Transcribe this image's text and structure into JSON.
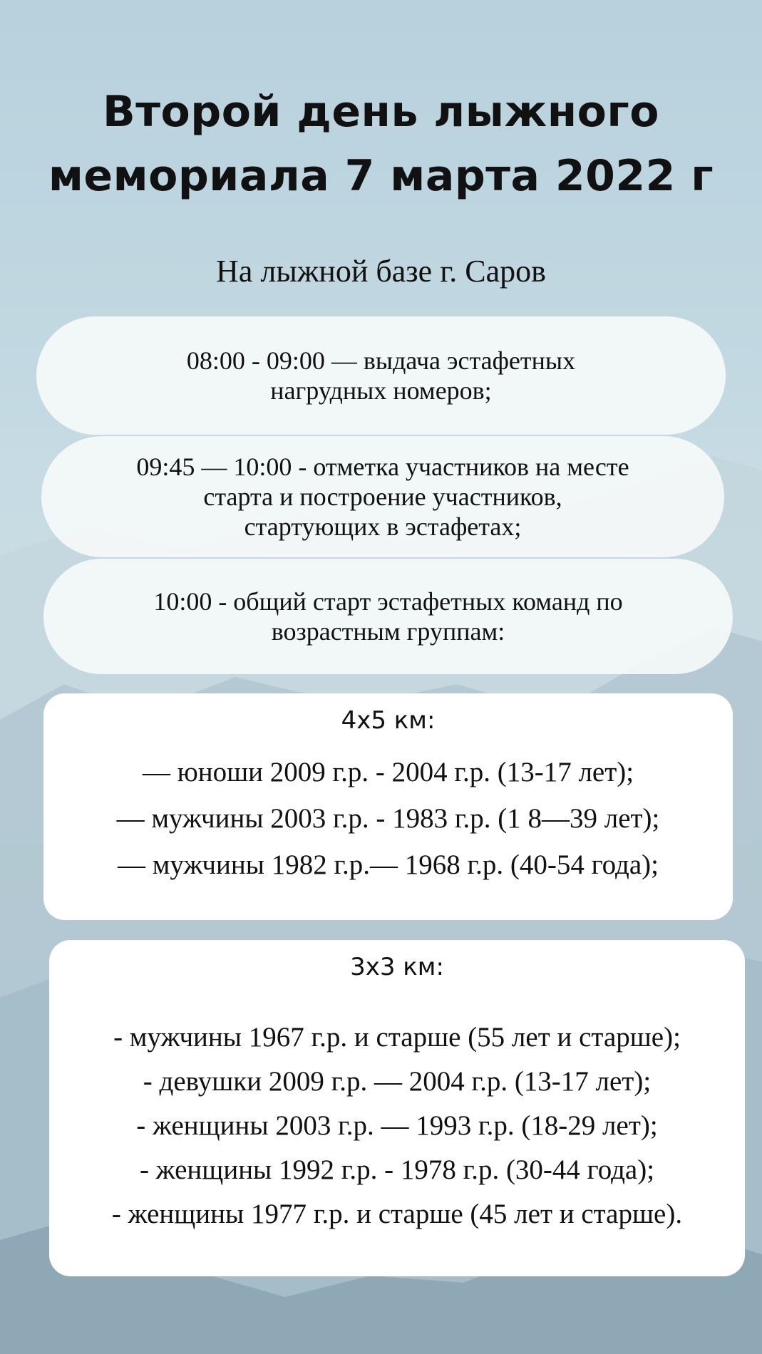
{
  "title": {
    "line1": "Второй день лыжного",
    "line2": "мемориала 7 марта 2022  г"
  },
  "subtitle": "На лыжной базе г. Саров",
  "schedule": [
    "08:00 - 09:00 — выдача эстафетных\nнагрудных номеров;",
    "09:45 — 10:00 - отметка участников на месте\nстарта и построение участников,\nстартующих в эстафетах;",
    "10:00 - общий старт эстафетных команд по\nвозрастным группам:"
  ],
  "relay_4x5": {
    "heading": "4х5 км:",
    "groups": [
      "— юноши 2009 г.р. - 2004 г.р. (13-17 лет);",
      "— мужчины 2003 г.р. - 1983 г.р. (1 8—39 лет);",
      "— мужчины 1982 г.р.— 1968 г.р. (40-54 года);"
    ]
  },
  "relay_3x3": {
    "heading": "3х3 км:",
    "groups": [
      "- мужчины 1967 г.р. и старше (55 лет и старше);",
      "- девушки 2009 г.р. — 2004 г.р. (13-17 лет);",
      "- женщины 2003 г.р. — 1993 г.р. (18-29 лет);",
      "- женщины 1992 г.р. - 1978 г.р. (30-44 года);",
      "- женщины 1977 г.р. и старше (45 лет и старше)."
    ]
  },
  "colors": {
    "sky": "#b7d1dd",
    "mountain": "#8fa9b8",
    "card": "#ffffff"
  }
}
